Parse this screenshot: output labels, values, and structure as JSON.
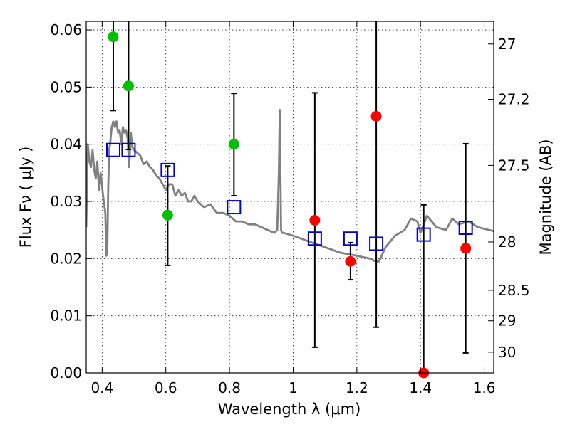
{
  "chart_data": {
    "type": "scatter",
    "title": "",
    "xlabel": "Wavelength  λ (μm)",
    "ylabel": "Flux  Fν  ( μJy )",
    "y2label": "Magnitude (AB)",
    "xlim": [
      0.35,
      1.63
    ],
    "ylim": [
      0.0,
      0.0615
    ],
    "grid": true,
    "x_ticks": [
      0.4,
      0.6,
      0.8,
      1.0,
      1.2,
      1.4,
      1.6
    ],
    "x_tick_labels": [
      "0.4",
      "0.6",
      "0.8",
      "1",
      "1.2",
      "1.4",
      "1.6"
    ],
    "y_ticks": [
      0.0,
      0.01,
      0.02,
      0.03,
      0.04,
      0.05,
      0.06
    ],
    "y_tick_labels": [
      "0.00",
      "0.01",
      "0.02",
      "0.03",
      "0.04",
      "0.05",
      "0.06"
    ],
    "y2_ticks": [
      {
        "label": "27",
        "mag": 27.0
      },
      {
        "label": "27.2",
        "mag": 27.2
      },
      {
        "label": "27.5",
        "mag": 27.5
      },
      {
        "label": "28",
        "mag": 28.0
      },
      {
        "label": "28.5",
        "mag": 28.5
      },
      {
        "label": "29",
        "mag": 29.0
      },
      {
        "label": "30",
        "mag": 30.0
      }
    ],
    "colors": {
      "detection": "#00c000",
      "low_significance": "#ff0000",
      "model": "#808080",
      "model_points": "#0000cc",
      "errorbar": "#000000"
    },
    "series": [
      {
        "kind": "observed",
        "color": "#00c000",
        "x": [
          0.435,
          0.483,
          0.606,
          0.814
        ],
        "y": [
          0.0588,
          0.0502,
          0.0276,
          0.04
        ],
        "yerr_low": [
          0.0459,
          0.0391,
          0.0188,
          0.031
        ],
        "yerr_high": [
          0.0618,
          0.0618,
          0.0362,
          0.0489
        ]
      },
      {
        "kind": "observed",
        "color": "#ff0000",
        "x": [
          1.068,
          1.18,
          1.261,
          1.41,
          1.542
        ],
        "y": [
          0.0267,
          0.0195,
          0.0449,
          0.0,
          0.0218
        ],
        "yerr_low": [
          0.0045,
          0.0163,
          0.008,
          0.0,
          0.0035
        ],
        "yerr_high": [
          0.049,
          0.0228,
          0.0618,
          0.0294,
          0.0401
        ]
      },
      {
        "kind": "model-photometry",
        "color": "#0000cc",
        "x": [
          0.435,
          0.483,
          0.606,
          0.814,
          1.068,
          1.18,
          1.261,
          1.41,
          1.542
        ],
        "y": [
          0.039,
          0.039,
          0.0355,
          0.029,
          0.0235,
          0.0235,
          0.0226,
          0.0242,
          0.0254
        ]
      },
      {
        "kind": "model-sed",
        "color": "#808080",
        "x": [
          0.35,
          0.355,
          0.36,
          0.365,
          0.37,
          0.375,
          0.38,
          0.385,
          0.39,
          0.395,
          0.4,
          0.405,
          0.41,
          0.413,
          0.416,
          0.419,
          0.422,
          0.425,
          0.43,
          0.435,
          0.44,
          0.445,
          0.45,
          0.455,
          0.46,
          0.465,
          0.47,
          0.475,
          0.48,
          0.485,
          0.49,
          0.495,
          0.5,
          0.51,
          0.52,
          0.53,
          0.54,
          0.55,
          0.56,
          0.57,
          0.58,
          0.59,
          0.6,
          0.61,
          0.62,
          0.63,
          0.64,
          0.65,
          0.66,
          0.67,
          0.68,
          0.69,
          0.7,
          0.72,
          0.74,
          0.76,
          0.78,
          0.8,
          0.82,
          0.84,
          0.86,
          0.88,
          0.9,
          0.92,
          0.94,
          0.95,
          0.955,
          0.958,
          0.96,
          0.962,
          0.965,
          0.97,
          1.0,
          1.05,
          1.1,
          1.15,
          1.2,
          1.24,
          1.26,
          1.27,
          1.29,
          1.32,
          1.35,
          1.37,
          1.39,
          1.4,
          1.42,
          1.45,
          1.48,
          1.5,
          1.52,
          1.55,
          1.58,
          1.63
        ],
        "y": [
          0.0255,
          0.04,
          0.037,
          0.036,
          0.039,
          0.0355,
          0.034,
          0.037,
          0.032,
          0.035,
          0.0325,
          0.03,
          0.028,
          0.0205,
          0.021,
          0.032,
          0.039,
          0.04,
          0.043,
          0.044,
          0.043,
          0.044,
          0.042,
          0.0425,
          0.04,
          0.043,
          0.042,
          0.0425,
          0.041,
          0.036,
          0.042,
          0.0395,
          0.039,
          0.0385,
          0.038,
          0.0365,
          0.037,
          0.036,
          0.0355,
          0.0345,
          0.034,
          0.033,
          0.032,
          0.033,
          0.033,
          0.031,
          0.032,
          0.031,
          0.0315,
          0.03,
          0.03,
          0.031,
          0.03,
          0.029,
          0.0295,
          0.028,
          0.028,
          0.0275,
          0.0265,
          0.0265,
          0.026,
          0.026,
          0.0255,
          0.025,
          0.0245,
          0.025,
          0.035,
          0.046,
          0.035,
          0.025,
          0.0245,
          0.0245,
          0.024,
          0.023,
          0.022,
          0.021,
          0.0205,
          0.02,
          0.0195,
          0.0195,
          0.022,
          0.024,
          0.025,
          0.027,
          0.0265,
          0.0245,
          0.0275,
          0.0255,
          0.025,
          0.027,
          0.026,
          0.0265,
          0.0255,
          0.0248
        ]
      }
    ]
  }
}
